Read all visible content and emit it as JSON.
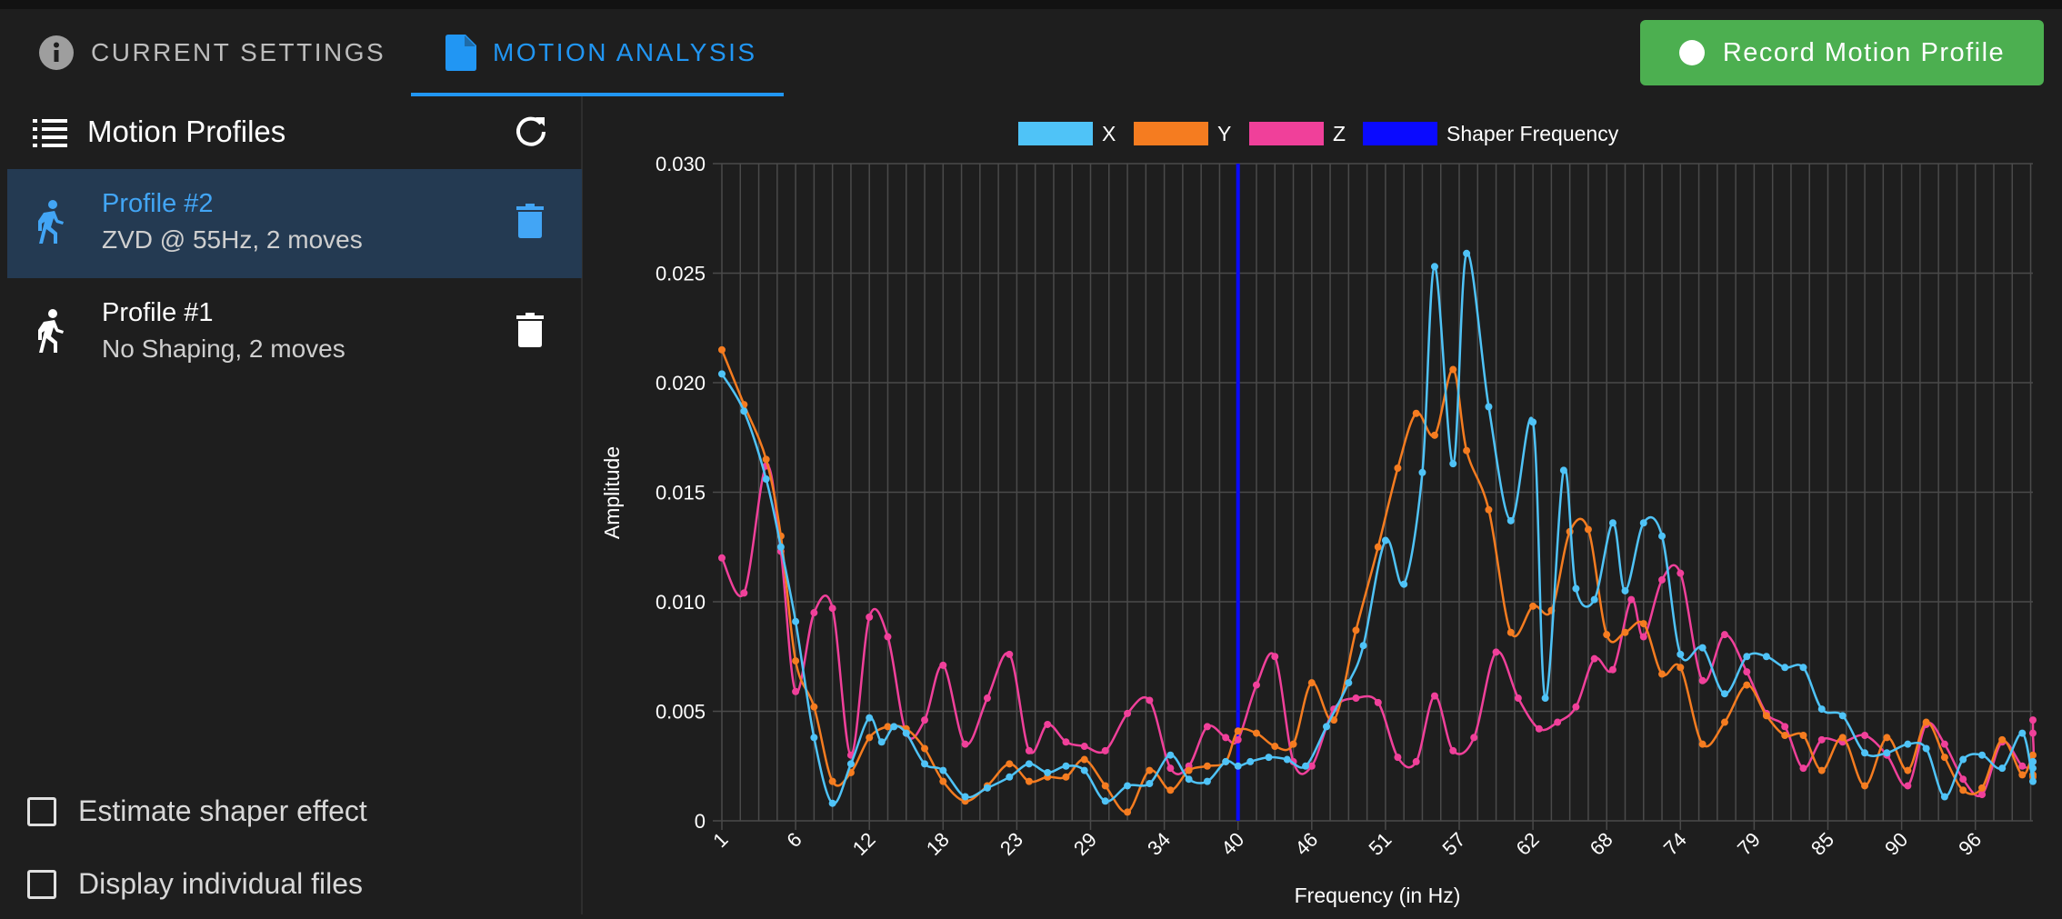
{
  "tabs": {
    "current_settings": "Current Settings",
    "motion_analysis": "Motion Analysis"
  },
  "record_button": "Record Motion Profile",
  "sidebar": {
    "title": "Motion Profiles",
    "profiles": [
      {
        "name": "Profile #2",
        "desc": "ZVD @ 55Hz, 2 moves",
        "active": true
      },
      {
        "name": "Profile #1",
        "desc": "No Shaping, 2 moves",
        "active": false
      }
    ],
    "checkboxes": [
      {
        "label": "Estimate shaper effect",
        "checked": false
      },
      {
        "label": "Display individual files",
        "checked": false
      }
    ]
  },
  "colors": {
    "accent": "#2196f3",
    "record": "#4caf50",
    "x": "#4fc3f7",
    "y": "#f57c20",
    "z": "#f0409a",
    "shaper": "#0a0aff"
  },
  "chart_data": {
    "type": "line",
    "xlabel": "Frequency (in Hz)",
    "ylabel": "Amplitude",
    "ylim": [
      0,
      0.03
    ],
    "xlim": [
      1,
      100
    ],
    "y_ticks": [
      "0",
      "0.005",
      "0.010",
      "0.015",
      "0.020",
      "0.025",
      "0.030"
    ],
    "x_ticks": [
      1,
      6,
      12,
      18,
      23,
      29,
      34,
      40,
      46,
      51,
      57,
      62,
      68,
      74,
      79,
      85,
      90,
      96
    ],
    "legend": {
      "placement": "top",
      "entries": [
        "X",
        "Y",
        "Z",
        "Shaper Frequency"
      ]
    },
    "shaper_frequency": 40,
    "series": [
      {
        "name": "X",
        "points": [
          [
            1,
            0.0204
          ],
          [
            2.5,
            0.0187
          ],
          [
            4,
            0.0156
          ],
          [
            5,
            0.0125
          ],
          [
            6,
            0.0091
          ],
          [
            7.5,
            0.0038
          ],
          [
            9,
            0.0008
          ],
          [
            10.5,
            0.0026
          ],
          [
            12,
            0.0047
          ],
          [
            13,
            0.0036
          ],
          [
            14,
            0.0043
          ],
          [
            15,
            0.004
          ],
          [
            16.5,
            0.0026
          ],
          [
            18,
            0.0023
          ],
          [
            19.5,
            0.0011
          ],
          [
            21,
            0.0015
          ],
          [
            22.5,
            0.002
          ],
          [
            24,
            0.0026
          ],
          [
            25.5,
            0.0022
          ],
          [
            27,
            0.0025
          ],
          [
            28.5,
            0.0023
          ],
          [
            30,
            0.0009
          ],
          [
            31.5,
            0.0016
          ],
          [
            33,
            0.0017
          ],
          [
            34.5,
            0.003
          ],
          [
            36,
            0.0019
          ],
          [
            37.5,
            0.0018
          ],
          [
            39,
            0.0027
          ],
          [
            40,
            0.0025
          ],
          [
            41,
            0.0027
          ],
          [
            42.5,
            0.0029
          ],
          [
            44,
            0.0028
          ],
          [
            45.5,
            0.0025
          ],
          [
            47,
            0.0043
          ],
          [
            48.5,
            0.0063
          ],
          [
            49.5,
            0.008
          ],
          [
            51,
            0.0128
          ],
          [
            52.5,
            0.0108
          ],
          [
            54,
            0.0159
          ],
          [
            55,
            0.0253
          ],
          [
            56.5,
            0.0163
          ],
          [
            57.5,
            0.0259
          ],
          [
            59,
            0.0189
          ],
          [
            60.5,
            0.0137
          ],
          [
            62,
            0.0182
          ],
          [
            63,
            0.0056
          ],
          [
            64.5,
            0.016
          ],
          [
            65.5,
            0.0106
          ],
          [
            67,
            0.0101
          ],
          [
            68.5,
            0.0136
          ],
          [
            69.5,
            0.0105
          ],
          [
            71,
            0.0136
          ],
          [
            72.5,
            0.013
          ],
          [
            74,
            0.0076
          ],
          [
            75.5,
            0.0079
          ],
          [
            77,
            0.0058
          ],
          [
            78.5,
            0.0075
          ],
          [
            80,
            0.0075
          ],
          [
            81.5,
            0.007
          ],
          [
            83,
            0.007
          ],
          [
            84.5,
            0.0051
          ],
          [
            86,
            0.0048
          ],
          [
            87.5,
            0.0031
          ],
          [
            89,
            0.0031
          ],
          [
            90.5,
            0.0035
          ],
          [
            92,
            0.0033
          ],
          [
            93.5,
            0.0011
          ],
          [
            95,
            0.0028
          ],
          [
            96.5,
            0.003
          ],
          [
            98,
            0.0024
          ],
          [
            99.5,
            0.004
          ],
          [
            101,
            0.0018
          ],
          [
            102.5,
            0.0024
          ],
          [
            104,
            0.0027
          ]
        ]
      },
      {
        "name": "Y",
        "points": [
          [
            1,
            0.0215
          ],
          [
            2.5,
            0.019
          ],
          [
            4,
            0.0165
          ],
          [
            5,
            0.013
          ],
          [
            6,
            0.0073
          ],
          [
            7.5,
            0.0052
          ],
          [
            9,
            0.0018
          ],
          [
            10.5,
            0.0022
          ],
          [
            12,
            0.0038
          ],
          [
            13.5,
            0.0043
          ],
          [
            15,
            0.0042
          ],
          [
            16.5,
            0.0033
          ],
          [
            18,
            0.0018
          ],
          [
            19.5,
            0.0009
          ],
          [
            21,
            0.0016
          ],
          [
            22.5,
            0.0026
          ],
          [
            24,
            0.0018
          ],
          [
            25.5,
            0.002
          ],
          [
            27,
            0.002
          ],
          [
            28.5,
            0.0028
          ],
          [
            30,
            0.0016
          ],
          [
            31.5,
            0.0004
          ],
          [
            33,
            0.0023
          ],
          [
            34.5,
            0.0014
          ],
          [
            36,
            0.0023
          ],
          [
            37.5,
            0.0025
          ],
          [
            39,
            0.0027
          ],
          [
            40,
            0.0041
          ],
          [
            41.5,
            0.004
          ],
          [
            43,
            0.0034
          ],
          [
            44.5,
            0.0035
          ],
          [
            46,
            0.0063
          ],
          [
            47.5,
            0.0046
          ],
          [
            49,
            0.0087
          ],
          [
            50.5,
            0.0125
          ],
          [
            52,
            0.0161
          ],
          [
            53.5,
            0.0186
          ],
          [
            55,
            0.0176
          ],
          [
            56.5,
            0.0206
          ],
          [
            57.5,
            0.0169
          ],
          [
            59,
            0.0142
          ],
          [
            60.5,
            0.0086
          ],
          [
            62,
            0.0098
          ],
          [
            63.5,
            0.0096
          ],
          [
            65,
            0.0132
          ],
          [
            66.5,
            0.0133
          ],
          [
            68,
            0.0085
          ],
          [
            69.5,
            0.0086
          ],
          [
            71,
            0.009
          ],
          [
            72.5,
            0.0067
          ],
          [
            74,
            0.007
          ],
          [
            75.5,
            0.0035
          ],
          [
            77,
            0.0045
          ],
          [
            78.5,
            0.0062
          ],
          [
            80,
            0.0048
          ],
          [
            81.5,
            0.0039
          ],
          [
            83,
            0.0039
          ],
          [
            84.5,
            0.0023
          ],
          [
            86,
            0.0038
          ],
          [
            87.5,
            0.0016
          ],
          [
            89,
            0.0038
          ],
          [
            90.5,
            0.0023
          ],
          [
            92,
            0.0045
          ],
          [
            93.5,
            0.0029
          ],
          [
            95,
            0.0014
          ],
          [
            96.5,
            0.0015
          ],
          [
            98,
            0.0037
          ],
          [
            99.5,
            0.0021
          ],
          [
            101,
            0.003
          ],
          [
            102.5,
            0.002
          ],
          [
            104,
            0.0021
          ]
        ]
      },
      {
        "name": "Z",
        "points": [
          [
            1,
            0.012
          ],
          [
            2.5,
            0.0104
          ],
          [
            4,
            0.0162
          ],
          [
            5,
            0.0123
          ],
          [
            6,
            0.0059
          ],
          [
            7.5,
            0.0095
          ],
          [
            9,
            0.0097
          ],
          [
            10.5,
            0.003
          ],
          [
            12,
            0.0093
          ],
          [
            13.5,
            0.0084
          ],
          [
            15,
            0.004
          ],
          [
            16.5,
            0.0046
          ],
          [
            18,
            0.0071
          ],
          [
            19.5,
            0.0035
          ],
          [
            21,
            0.0056
          ],
          [
            22.5,
            0.0076
          ],
          [
            24,
            0.0032
          ],
          [
            25.5,
            0.0044
          ],
          [
            27,
            0.0036
          ],
          [
            28.5,
            0.0034
          ],
          [
            30,
            0.0032
          ],
          [
            31.5,
            0.0049
          ],
          [
            33,
            0.0055
          ],
          [
            34.5,
            0.0024
          ],
          [
            36,
            0.0025
          ],
          [
            37.5,
            0.0043
          ],
          [
            39,
            0.0038
          ],
          [
            40,
            0.0037
          ],
          [
            41.5,
            0.0062
          ],
          [
            43,
            0.0075
          ],
          [
            44.5,
            0.0027
          ],
          [
            46,
            0.0025
          ],
          [
            47.5,
            0.0051
          ],
          [
            49,
            0.0056
          ],
          [
            50.5,
            0.0054
          ],
          [
            52,
            0.0029
          ],
          [
            53.5,
            0.0027
          ],
          [
            55,
            0.0057
          ],
          [
            56.5,
            0.0032
          ],
          [
            58,
            0.0038
          ],
          [
            59.5,
            0.0077
          ],
          [
            61,
            0.0056
          ],
          [
            62.5,
            0.0042
          ],
          [
            64,
            0.0045
          ],
          [
            65.5,
            0.0052
          ],
          [
            67,
            0.0074
          ],
          [
            68.5,
            0.0069
          ],
          [
            70,
            0.0101
          ],
          [
            71,
            0.0084
          ],
          [
            72.5,
            0.011
          ],
          [
            74,
            0.0113
          ],
          [
            75.5,
            0.0064
          ],
          [
            77,
            0.0085
          ],
          [
            78.5,
            0.0068
          ],
          [
            80,
            0.0049
          ],
          [
            81.5,
            0.0043
          ],
          [
            83,
            0.0024
          ],
          [
            84.5,
            0.0037
          ],
          [
            86,
            0.0036
          ],
          [
            87.5,
            0.0039
          ],
          [
            89,
            0.003
          ],
          [
            90.5,
            0.0016
          ],
          [
            92,
            0.0044
          ],
          [
            93.5,
            0.0035
          ],
          [
            95,
            0.0019
          ],
          [
            96.5,
            0.0012
          ],
          [
            98,
            0.0036
          ],
          [
            99.5,
            0.0025
          ],
          [
            101,
            0.0027
          ],
          [
            102.5,
            0.004
          ],
          [
            104,
            0.0046
          ]
        ]
      }
    ]
  }
}
